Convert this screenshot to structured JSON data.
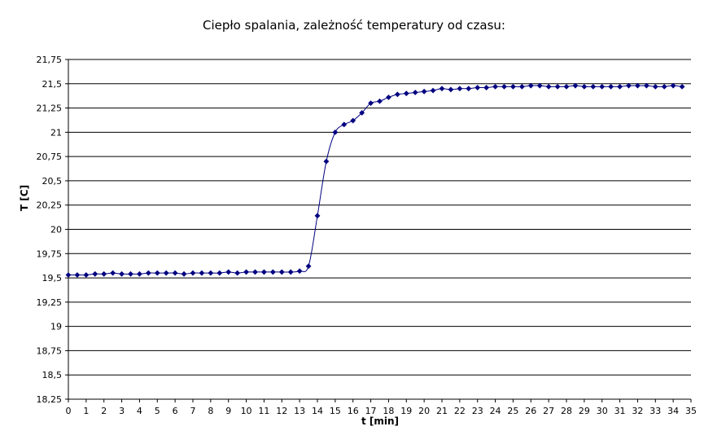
{
  "chart_data": {
    "type": "line",
    "title": "Ciepło spalania, zależność temperatury od czasu:",
    "xlabel": "t [min]",
    "ylabel": "T [C]",
    "xlim": [
      0,
      35
    ],
    "ylim": [
      18.25,
      21.75
    ],
    "x_ticks": [
      "0",
      "1",
      "2",
      "3",
      "4",
      "5",
      "6",
      "7",
      "8",
      "9",
      "10",
      "11",
      "12",
      "13",
      "14",
      "15",
      "16",
      "17",
      "18",
      "19",
      "20",
      "21",
      "22",
      "23",
      "24",
      "25",
      "26",
      "27",
      "28",
      "29",
      "30",
      "31",
      "32",
      "33",
      "34",
      "35"
    ],
    "y_ticks": [
      "18,25",
      "18,5",
      "18,75",
      "19",
      "19,25",
      "19,5",
      "19,75",
      "20",
      "20,25",
      "20,5",
      "20,75",
      "21",
      "21,25",
      "21,5",
      "21,75"
    ],
    "grid": "horizontal",
    "legend": "none",
    "line_color": "#000080",
    "series": [
      {
        "x": [
          0,
          0.5,
          1,
          1.5,
          2,
          2.5,
          3,
          3.5,
          4,
          4.5,
          5,
          5.5,
          6,
          6.5,
          7,
          7.5,
          8,
          8.5,
          9,
          9.5,
          10,
          10.5,
          11,
          11.5,
          12,
          12.5,
          13,
          13.5,
          14,
          14.5,
          15,
          15.5,
          16,
          16.5,
          17,
          17.5,
          18,
          18.5,
          19,
          19.5,
          20,
          20.5,
          21,
          21.5,
          22,
          22.5,
          23,
          23.5,
          24,
          24.5,
          25,
          25.5,
          26,
          26.5,
          27,
          27.5,
          28,
          28.5,
          29,
          29.5,
          30,
          30.5,
          31,
          31.5,
          32,
          32.5,
          33,
          33.5,
          34,
          34.5
        ],
        "y": [
          19.53,
          19.53,
          19.53,
          19.54,
          19.54,
          19.55,
          19.54,
          19.54,
          19.54,
          19.55,
          19.55,
          19.55,
          19.55,
          19.54,
          19.55,
          19.55,
          19.55,
          19.55,
          19.56,
          19.55,
          19.56,
          19.56,
          19.56,
          19.56,
          19.56,
          19.56,
          19.57,
          19.62,
          20.14,
          20.7,
          21.0,
          21.08,
          21.12,
          21.2,
          21.3,
          21.32,
          21.36,
          21.39,
          21.4,
          21.41,
          21.42,
          21.43,
          21.45,
          21.44,
          21.45,
          21.45,
          21.46,
          21.46,
          21.47,
          21.47,
          21.47,
          21.47,
          21.48,
          21.48,
          21.47,
          21.47,
          21.47,
          21.48,
          21.47,
          21.47,
          21.47,
          21.47,
          21.47,
          21.48,
          21.48,
          21.48,
          21.47,
          21.47,
          21.48,
          21.47
        ]
      }
    ]
  }
}
